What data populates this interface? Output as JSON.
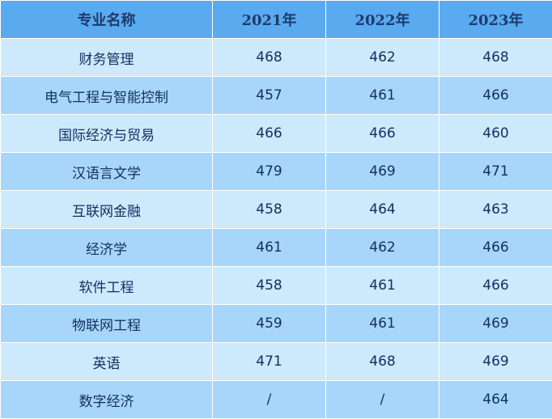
{
  "table": {
    "headers": [
      "专业名称",
      "2021年",
      "2022年",
      "2023年"
    ],
    "rows": [
      [
        "财务管理",
        "468",
        "462",
        "468"
      ],
      [
        "电气工程与智能控制",
        "457",
        "461",
        "466"
      ],
      [
        "国际经济与贸易",
        "466",
        "466",
        "460"
      ],
      [
        "汉语言文学",
        "479",
        "469",
        "471"
      ],
      [
        "互联网金融",
        "458",
        "464",
        "463"
      ],
      [
        "经济学",
        "461",
        "462",
        "466"
      ],
      [
        "软件工程",
        "458",
        "461",
        "466"
      ],
      [
        "物联网工程",
        "459",
        "461",
        "469"
      ],
      [
        "英语",
        "471",
        "468",
        "469"
      ],
      [
        "数字经济",
        "/",
        "/",
        "464"
      ]
    ]
  },
  "colors": {
    "header_bg": "#5aaaf0",
    "header_text": "#1f3a6b",
    "row_light": "#cde9fc",
    "row_dark": "#a8d6fa",
    "cell_text": "#123064",
    "grid_line": "#ffffff"
  }
}
